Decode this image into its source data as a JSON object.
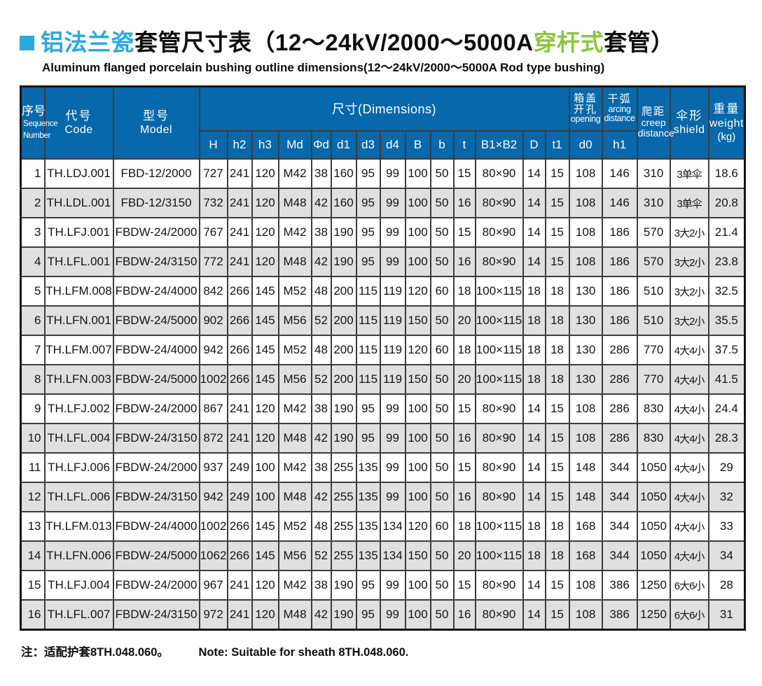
{
  "title": {
    "cn_blue": "铝法兰瓷",
    "cn_black1": "套管尺寸表（12～24kV/2000～5000A",
    "cn_green": "穿杆式",
    "cn_black2": "套管）",
    "subtitle": "Aluminum flanged porcelain bushing outline dimensions(12～24kV/2000～5000A  Rod type bushing)"
  },
  "colors": {
    "header_bg": "#0768ac",
    "row_alt": "#e0e0e0",
    "title_blue": "#29a9e0",
    "title_green": "#8dc63f",
    "border_color": "#3d3d3d"
  },
  "table": {
    "header": {
      "seq_cn": "序号",
      "seq_en1": "Sequence",
      "seq_en2": "Number",
      "code_cn": "代号",
      "code_en": "Code",
      "model_cn": "型号",
      "model_en": "Model",
      "dimensions": "尺寸(Dimensions)",
      "dim_cols": [
        "H",
        "h2",
        "h3",
        "Md",
        "Φd",
        "d1",
        "d3",
        "d4",
        "B",
        "b",
        "t",
        "B1×B2",
        "D",
        "t1"
      ],
      "opening_cn1": "箱盖",
      "opening_cn2": "开孔",
      "opening_en": "opening",
      "opening_sub": "d0",
      "arcing_cn": "干弧",
      "arcing_en1": "arcing",
      "arcing_en2": "distance",
      "arcing_sub": "h1",
      "creep_cn": "爬距",
      "creep_en1": "creep",
      "creep_en2": "distance",
      "shield_cn": "伞形",
      "shield_en": "shield",
      "weight_cn": "重量",
      "weight_en": "weight",
      "weight_unit": "(kg)"
    },
    "col_keys": [
      "seq",
      "code",
      "model",
      "H",
      "h2",
      "h3",
      "Md",
      "Phid",
      "d1",
      "d3",
      "d4",
      "B",
      "b",
      "t",
      "B1xB2",
      "D",
      "t1",
      "d0",
      "h1",
      "creep",
      "shield",
      "weight"
    ],
    "rows": [
      [
        "1",
        "TH.LDJ.001",
        "FBD-12/2000",
        "727",
        "241",
        "120",
        "M42",
        "38",
        "160",
        "95",
        "99",
        "100",
        "50",
        "15",
        "80×90",
        "14",
        "15",
        "108",
        "146",
        "310",
        "3单伞",
        "18.6"
      ],
      [
        "2",
        "TH.LDL.001",
        "FBD-12/3150",
        "732",
        "241",
        "120",
        "M48",
        "42",
        "160",
        "95",
        "99",
        "100",
        "50",
        "16",
        "80×90",
        "14",
        "15",
        "108",
        "146",
        "310",
        "3单伞",
        "20.8"
      ],
      [
        "3",
        "TH.LFJ.001",
        "FBDW-24/2000",
        "767",
        "241",
        "120",
        "M42",
        "38",
        "190",
        "95",
        "99",
        "100",
        "50",
        "15",
        "80×90",
        "14",
        "15",
        "108",
        "186",
        "570",
        "3大2小",
        "21.4"
      ],
      [
        "4",
        "TH.LFL.001",
        "FBDW-24/3150",
        "772",
        "241",
        "120",
        "M48",
        "42",
        "190",
        "95",
        "99",
        "100",
        "50",
        "16",
        "80×90",
        "14",
        "15",
        "108",
        "186",
        "570",
        "3大2小",
        "23.8"
      ],
      [
        "5",
        "TH.LFM.008",
        "FBDW-24/4000",
        "842",
        "266",
        "145",
        "M52",
        "48",
        "200",
        "115",
        "119",
        "120",
        "60",
        "18",
        "100×115",
        "18",
        "18",
        "130",
        "186",
        "510",
        "3大2小",
        "32.5"
      ],
      [
        "6",
        "TH.LFN.001",
        "FBDW-24/5000",
        "902",
        "266",
        "145",
        "M56",
        "52",
        "200",
        "115",
        "119",
        "150",
        "50",
        "20",
        "100×115",
        "18",
        "18",
        "130",
        "186",
        "510",
        "3大2小",
        "35.5"
      ],
      [
        "7",
        "TH.LFM.007",
        "FBDW-24/4000",
        "942",
        "266",
        "145",
        "M52",
        "48",
        "200",
        "115",
        "119",
        "120",
        "60",
        "18",
        "100×115",
        "18",
        "18",
        "130",
        "286",
        "770",
        "4大4小",
        "37.5"
      ],
      [
        "8",
        "TH.LFN.003",
        "FBDW-24/5000",
        "1002",
        "266",
        "145",
        "M56",
        "52",
        "200",
        "115",
        "119",
        "150",
        "50",
        "20",
        "100×115",
        "18",
        "18",
        "130",
        "286",
        "770",
        "4大4小",
        "41.5"
      ],
      [
        "9",
        "TH.LFJ.002",
        "FBDW-24/2000",
        "867",
        "241",
        "120",
        "M42",
        "38",
        "190",
        "95",
        "99",
        "100",
        "50",
        "15",
        "80×90",
        "14",
        "15",
        "108",
        "286",
        "830",
        "4大4小",
        "24.4"
      ],
      [
        "10",
        "TH.LFL.004",
        "FBDW-24/3150",
        "872",
        "241",
        "120",
        "M48",
        "42",
        "190",
        "95",
        "99",
        "100",
        "50",
        "16",
        "80×90",
        "14",
        "15",
        "108",
        "286",
        "830",
        "4大4小",
        "28.3"
      ],
      [
        "11",
        "TH.LFJ.006",
        "FBDW-24/2000",
        "937",
        "249",
        "100",
        "M42",
        "38",
        "255",
        "135",
        "99",
        "100",
        "50",
        "15",
        "80×90",
        "14",
        "15",
        "148",
        "344",
        "1050",
        "4大4小",
        "29"
      ],
      [
        "12",
        "TH.LFL.006",
        "FBDW-24/3150",
        "942",
        "249",
        "100",
        "M48",
        "42",
        "255",
        "135",
        "99",
        "100",
        "50",
        "16",
        "80×90",
        "14",
        "15",
        "148",
        "344",
        "1050",
        "4大4小",
        "32"
      ],
      [
        "13",
        "TH.LFM.013",
        "FBDW-24/4000",
        "1002",
        "266",
        "145",
        "M52",
        "48",
        "255",
        "135",
        "134",
        "120",
        "60",
        "18",
        "100×115",
        "18",
        "18",
        "168",
        "344",
        "1050",
        "4大4小",
        "33"
      ],
      [
        "14",
        "TH.LFN.006",
        "FBDW-24/5000",
        "1062",
        "266",
        "145",
        "M56",
        "52",
        "255",
        "135",
        "134",
        "150",
        "50",
        "20",
        "100×115",
        "18",
        "18",
        "168",
        "344",
        "1050",
        "4大4小",
        "34"
      ],
      [
        "15",
        "TH.LFJ.004",
        "FBDW-24/2000",
        "967",
        "241",
        "120",
        "M42",
        "38",
        "190",
        "95",
        "99",
        "100",
        "50",
        "15",
        "80×90",
        "14",
        "15",
        "108",
        "386",
        "1250",
        "6大6小",
        "28"
      ],
      [
        "16",
        "TH.LFL.007",
        "FBDW-24/3150",
        "972",
        "241",
        "120",
        "M48",
        "42",
        "190",
        "95",
        "99",
        "100",
        "50",
        "16",
        "80×90",
        "14",
        "15",
        "108",
        "386",
        "1250",
        "6大6小",
        "31"
      ]
    ]
  },
  "note": {
    "cn": "注：适配护套8TH.048.060。",
    "en": "Note: Suitable for sheath 8TH.048.060."
  }
}
